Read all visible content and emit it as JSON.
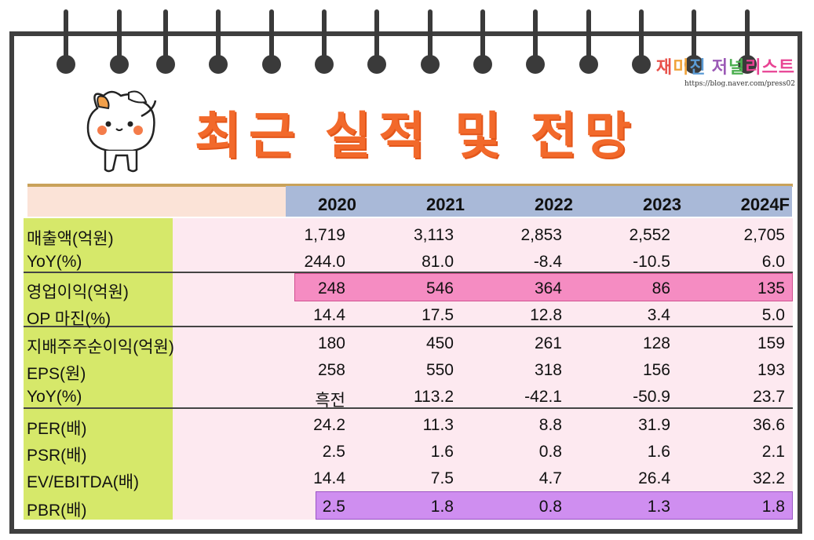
{
  "title": "최근 실적 및 전망",
  "watermark": {
    "title_parts": [
      "재",
      "미",
      "진",
      " 저",
      "널",
      "리스트"
    ],
    "url": "https://blog.naver.com/press02"
  },
  "years": [
    "2020",
    "2021",
    "2022",
    "2023",
    "2024F"
  ],
  "rows": [
    {
      "label": "매출액(억원)",
      "values": [
        "1,719",
        "3,113",
        "2,853",
        "2,552",
        "2,705"
      ]
    },
    {
      "label": "YoY(%)",
      "values": [
        "244.0",
        "81.0",
        "-8.4",
        "-10.5",
        "6.0"
      ]
    },
    {
      "label": "영업이익(억원)",
      "values": [
        "248",
        "546",
        "364",
        "86",
        "135"
      ]
    },
    {
      "label": "OP 마진(%)",
      "values": [
        "14.4",
        "17.5",
        "12.8",
        "3.4",
        "5.0"
      ]
    },
    {
      "label": "지배주주순이익(억원)",
      "values": [
        "180",
        "450",
        "261",
        "128",
        "159"
      ]
    },
    {
      "label": "EPS(원)",
      "values": [
        "258",
        "550",
        "318",
        "156",
        "193"
      ]
    },
    {
      "label": "YoY(%)",
      "values": [
        "흑전",
        "113.2",
        "-42.1",
        "-50.9",
        "23.7"
      ]
    },
    {
      "label": "PER(배)",
      "values": [
        "24.2",
        "11.3",
        "8.8",
        "31.9",
        "36.6"
      ]
    },
    {
      "label": "PSR(배)",
      "values": [
        "2.5",
        "1.6",
        "0.8",
        "1.6",
        "2.1"
      ]
    },
    {
      "label": "EV/EBITDA(배)",
      "values": [
        "14.4",
        "7.5",
        "4.7",
        "26.4",
        "32.2"
      ]
    },
    {
      "label": "PBR(배)",
      "values": [
        "2.5",
        "1.8",
        "0.8",
        "1.3",
        "1.8"
      ]
    }
  ],
  "colors": {
    "title": "#f2692b",
    "label_column": "#d6e86a",
    "header_years": "#a9b9d8",
    "highlight_operating_profit": "#f58cc2",
    "highlight_pbr": "#cf8ef0"
  }
}
